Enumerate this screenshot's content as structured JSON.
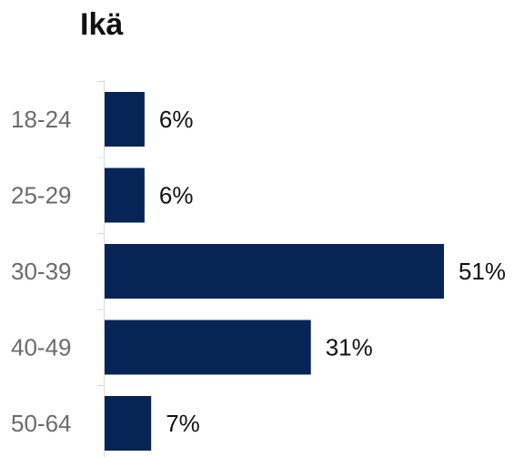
{
  "chart_data": {
    "type": "bar",
    "orientation": "horizontal",
    "title": "Ikä",
    "categories": [
      "18-24",
      "25-29",
      "30-39",
      "40-49",
      "50-64"
    ],
    "values": [
      6,
      6,
      51,
      31,
      7
    ],
    "value_labels": [
      "6%",
      "6%",
      "51%",
      "31%",
      "7%"
    ],
    "xlim": [
      0,
      51
    ],
    "unit": "%",
    "grid": false,
    "legend": "none",
    "colors": {
      "bar": "#062456",
      "axis": "#d9d9d9"
    }
  }
}
